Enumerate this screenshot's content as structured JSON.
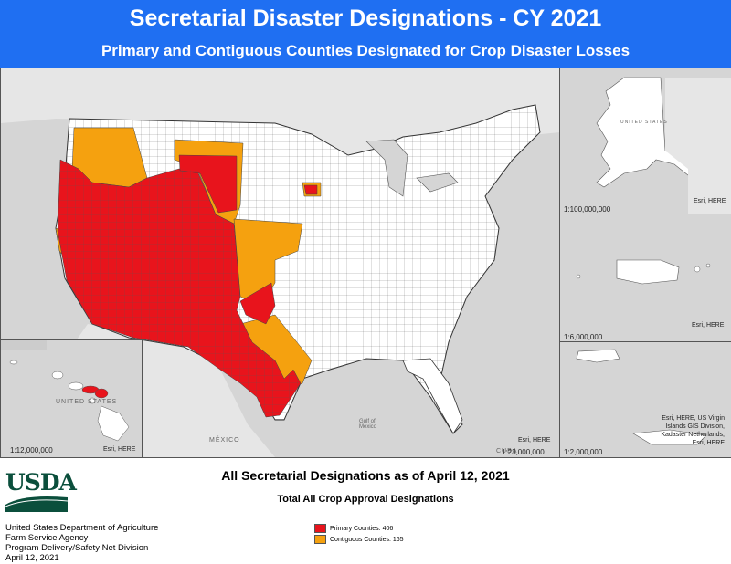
{
  "header": {
    "title": "Secretarial Disaster Designations - CY 2021",
    "subtitle": "Primary and Contiguous Counties Designated for Crop Disaster Losses"
  },
  "colors": {
    "banner": "#1f6ff2",
    "primary": "#e8141c",
    "contiguous": "#f5a10f",
    "land": "#ffffff",
    "water": "#d5d5d5"
  },
  "map": {
    "main_scale": "1:23,000,000",
    "main_credit": "Esri, HERE",
    "labels": {
      "mexico": "MÉXICO",
      "gulf": "Gulf of Mexico",
      "cuba": "CUBA"
    }
  },
  "insets": {
    "alaska": {
      "scale": "1:100,000,000",
      "credit": "Esri, HERE",
      "label": "UNITED STATES"
    },
    "puerto_rico": {
      "scale": "1:6,000,000",
      "credit": "Esri, HERE"
    },
    "virgin_islands": {
      "scale": "1:2,000,000",
      "credit_lines": [
        "Esri, HERE, US Virgin",
        "Islands GIS Division,",
        "Kadaster Netherlands,",
        "Esri, HERE"
      ]
    },
    "hawaii": {
      "scale": "1:12,000,000",
      "credit": "Esri, HERE",
      "label": "UNITED STATES"
    }
  },
  "footer": {
    "logo_text": "USDA",
    "title": "All Secretarial Designations as of April 12, 2021",
    "subtitle": "Total All Crop Approval Designations",
    "agency_lines": [
      "United States Department of Agriculture",
      "Farm Service Agency",
      "Program Delivery/Safety Net Division",
      "April 12, 2021"
    ]
  },
  "legend": [
    {
      "label": "Primary Counties: 406",
      "color": "#e8141c"
    },
    {
      "label": "Contiguous Counties: 165",
      "color": "#f5a10f"
    }
  ]
}
